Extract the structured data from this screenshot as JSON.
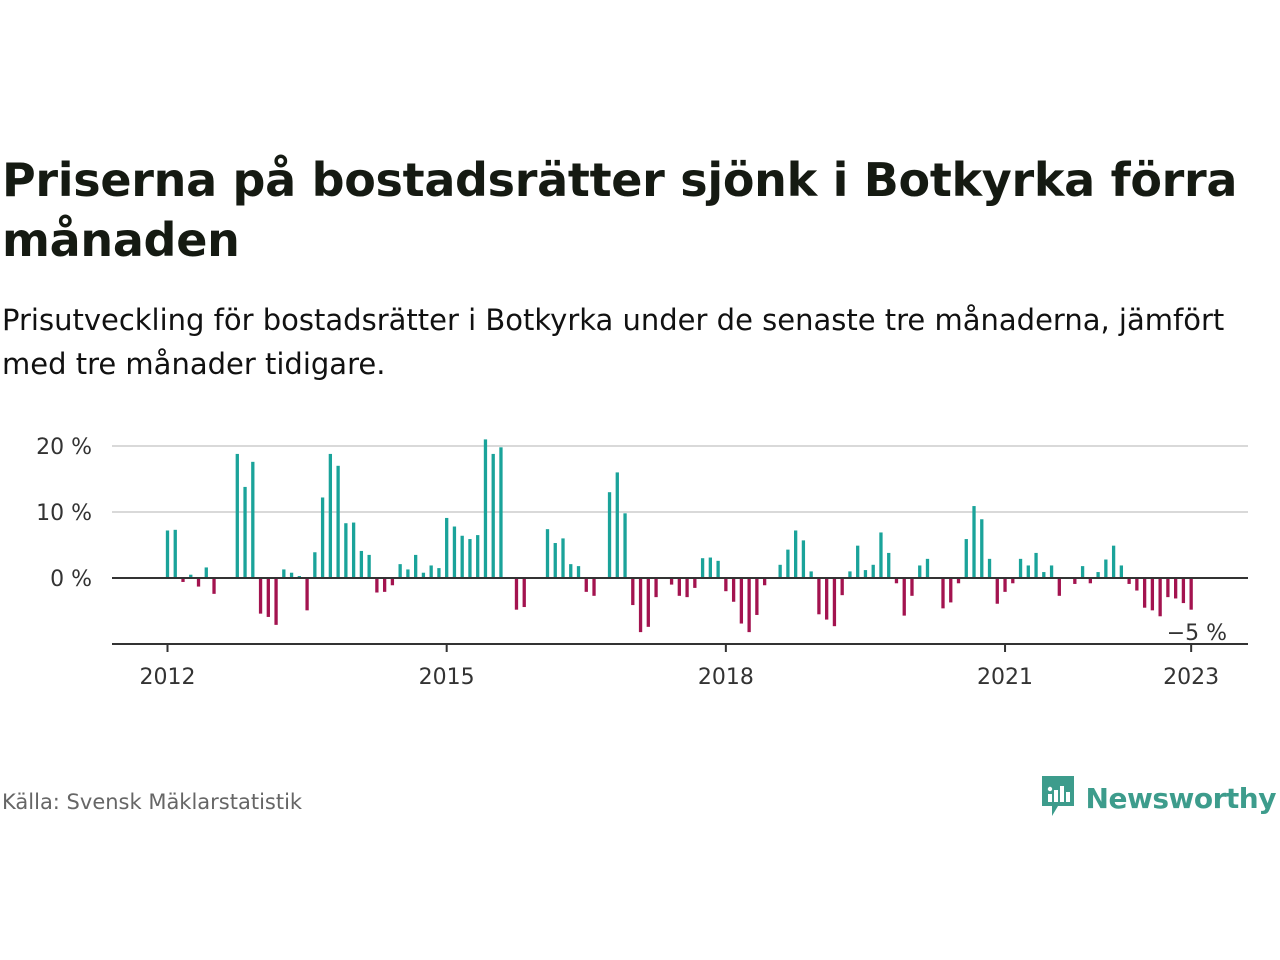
{
  "title": "Priserna på bostadsrätter sjönk i Botkyrka förra månaden",
  "subtitle": "Prisutveckling för bostadsrätter i Botkyrka under de senaste tre månaderna, jämfört med tre månader tidigare.",
  "source": "Källa: Svensk Mäklarstatistik",
  "brand": {
    "name": "Newsworthy",
    "icon": "newsworthy-logo-icon"
  },
  "colors": {
    "positive": "#1aa39a",
    "negative": "#a3134f",
    "grid": "#d9d9d9",
    "axis": "#333333",
    "brand": "#3d9c8c"
  },
  "chart_data": {
    "type": "bar",
    "x_start": "2012-01",
    "x_end": "2023-02",
    "y_ticks": [
      "20 %",
      "10 %",
      "0 %"
    ],
    "y_tick_values": [
      20,
      10,
      0
    ],
    "x_ticks": [
      "2012",
      "2015",
      "2018",
      "2021",
      "2023"
    ],
    "x_tick_values": [
      "2012-01",
      "2015-01",
      "2018-01",
      "2021-01",
      "2023-01"
    ],
    "ylim": [
      -10,
      21
    ],
    "grid": true,
    "annotation": {
      "label": "−5 %",
      "x": "2023-02"
    },
    "values": [
      7.2,
      7.3,
      -0.6,
      0.5,
      -1.3,
      1.6,
      -2.4,
      null,
      null,
      18.8,
      13.8,
      17.6,
      -5.4,
      -5.9,
      -7.1,
      1.3,
      0.8,
      0.3,
      -4.9,
      3.9,
      12.2,
      18.8,
      17.0,
      8.3,
      8.4,
      4.1,
      3.5,
      -2.2,
      -2.1,
      -1.1,
      2.1,
      1.3,
      3.5,
      0.8,
      1.9,
      1.5,
      9.1,
      7.8,
      6.4,
      5.9,
      6.5,
      21.0,
      18.8,
      19.8,
      null,
      -4.8,
      -4.4,
      null,
      null,
      7.4,
      5.3,
      6.0,
      2.1,
      1.8,
      -2.1,
      -2.7,
      null,
      13.0,
      16.0,
      9.8,
      -4.1,
      -8.2,
      -7.4,
      -2.9,
      null,
      -1.0,
      -2.7,
      -2.9,
      -1.5,
      3.0,
      3.1,
      2.6,
      -2.0,
      -3.6,
      -6.9,
      -8.2,
      -5.6,
      -1.1,
      null,
      2.0,
      4.3,
      7.2,
      5.7,
      1.0,
      -5.5,
      -6.3,
      -7.3,
      -2.6,
      1.0,
      4.9,
      1.2,
      2.0,
      6.9,
      3.8,
      -0.8,
      -5.7,
      -2.7,
      1.9,
      2.9,
      null,
      -4.6,
      -3.7,
      -0.8,
      5.9,
      10.9,
      8.9,
      2.9,
      -3.9,
      -2.1,
      -0.8,
      2.9,
      1.9,
      3.8,
      0.9,
      1.9,
      -2.7,
      null,
      -0.9,
      1.8,
      -0.8,
      0.9,
      2.8,
      4.9,
      1.9,
      -0.9,
      -1.9,
      -4.5,
      -4.9,
      -5.8,
      -2.9,
      -3.1,
      -3.8,
      -4.8
    ]
  }
}
